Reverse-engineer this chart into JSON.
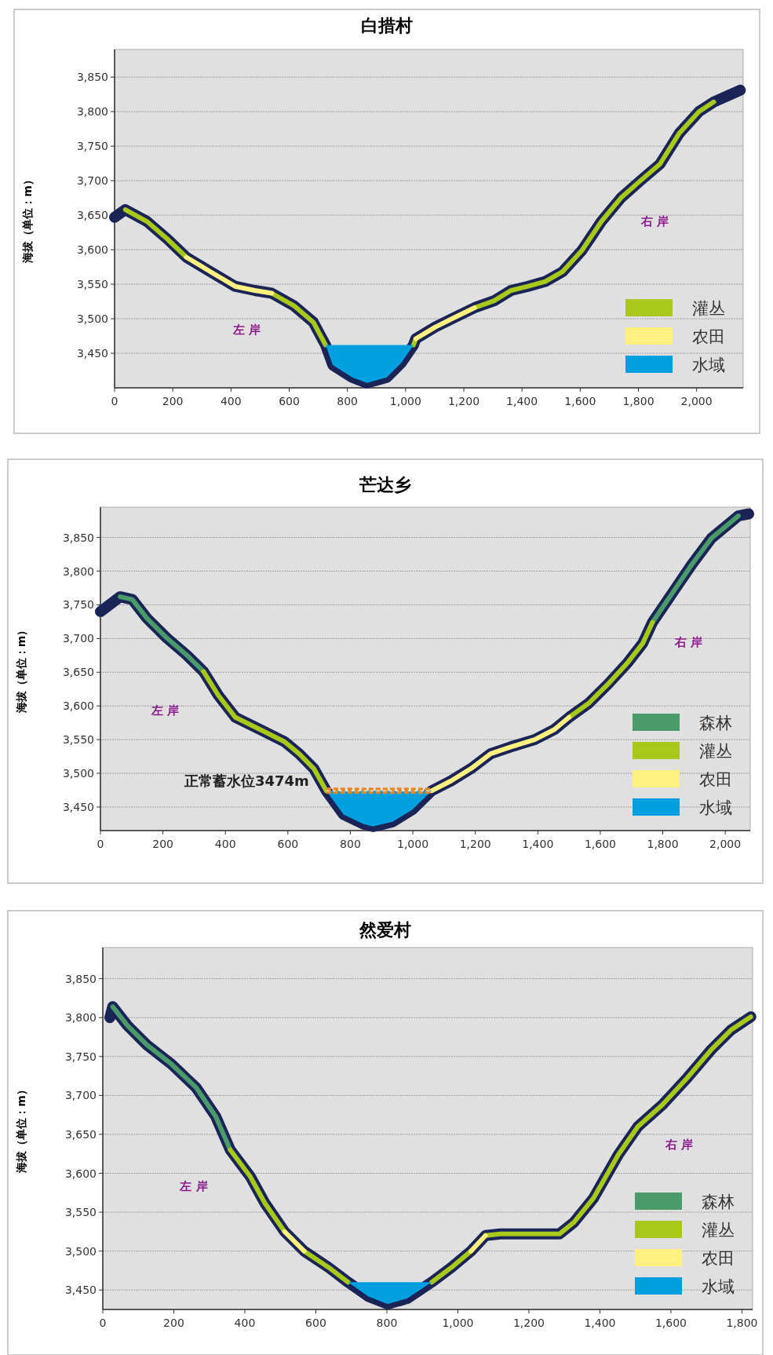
{
  "chart_data": [
    {
      "type": "line",
      "title": "白措村",
      "ylabel": "海拔（单位：m）",
      "xlim": [
        0,
        2160
      ],
      "ylim": [
        3400,
        3890
      ],
      "xticks": [
        0,
        200,
        400,
        600,
        800,
        {
          "value": 1000,
          "label": "1,000"
        },
        {
          "value": 1200,
          "label": "1,200"
        },
        {
          "value": 1400,
          "label": "1,400"
        },
        {
          "value": 1600,
          "label": "1,600"
        },
        {
          "value": 1800,
          "label": "1,800"
        },
        {
          "value": 2000,
          "label": "2,000"
        }
      ],
      "yticks": [
        {
          "value": 3450,
          "label": "3,450"
        },
        {
          "value": 3500,
          "label": "3,500"
        },
        {
          "value": 3550,
          "label": "3,550"
        },
        {
          "value": 3600,
          "label": "3,600"
        },
        {
          "value": 3650,
          "label": "3,650"
        },
        {
          "value": 3700,
          "label": "3,700"
        },
        {
          "value": 3750,
          "label": "3,750"
        },
        {
          "value": 3800,
          "label": "3,800"
        },
        {
          "value": 3850,
          "label": "3,850"
        }
      ],
      "grid": "y",
      "legend": "bottom right",
      "annotations": [
        "左 岸",
        "右 岸"
      ],
      "series": [
        {
          "color": "#1a2456",
          "x": [
            0,
            37,
            111,
            180,
            247,
            330,
            414,
            482,
            540,
            616,
            683,
            725,
            750,
            817,
            867,
            935,
            985,
            1027,
            1035,
            1102,
            1169,
            1237,
            1304,
            1362,
            1421,
            1480,
            1539,
            1606,
            1673,
            1740,
            1807,
            1874,
            1941,
            2008,
            2059,
            2150
          ],
          "values": [
            3647,
            3658,
            3641,
            3616,
            3589,
            3568,
            3547,
            3541,
            3537,
            3519,
            3495,
            3462,
            3433,
            3415,
            3407,
            3415,
            3436,
            3462,
            3471,
            3488,
            3502,
            3516,
            3526,
            3541,
            3547,
            3554,
            3568,
            3599,
            3641,
            3675,
            3700,
            3724,
            3769,
            3800,
            3814,
            3831
          ]
        },
        {
          "name": "灌丛",
          "color": "#a8c81a",
          "x": [
            37,
            111,
            180,
            247,
            null,
            540,
            616,
            683,
            725,
            null,
            1027,
            1035,
            null,
            1237,
            1304,
            1362,
            1421,
            1480,
            1539,
            1606,
            1673,
            1740,
            1807,
            1874,
            1941,
            2008,
            2059
          ],
          "values": [
            3658,
            3641,
            3616,
            3589,
            null,
            3537,
            3519,
            3495,
            3462,
            null,
            3462,
            3471,
            null,
            3516,
            3526,
            3541,
            3547,
            3554,
            3568,
            3599,
            3641,
            3675,
            3700,
            3724,
            3769,
            3800,
            3814
          ]
        },
        {
          "name": "农田",
          "color": "#fff080",
          "x": [
            247,
            330,
            414,
            482,
            540,
            null,
            1035,
            1102,
            1169,
            1237
          ],
          "values": [
            3589,
            3568,
            3547,
            3541,
            3537,
            null,
            3471,
            3488,
            3502,
            3516
          ]
        },
        {
          "name": "水域",
          "type": "area",
          "color": "#00a0e0",
          "x": [
            725,
            750,
            817,
            867,
            935,
            985,
            1027
          ],
          "values": [
            3462,
            3462,
            3462,
            3462,
            3462,
            3462,
            3462
          ]
        }
      ]
    },
    {
      "type": "line",
      "title": "芒达乡",
      "ylabel": "海拔（单位：m）",
      "xlim": [
        0,
        2080
      ],
      "ylim": [
        3415,
        3895
      ],
      "xticks": [
        0,
        200,
        400,
        600,
        800,
        {
          "value": 1000,
          "label": "1,000"
        },
        {
          "value": 1200,
          "label": "1,200"
        },
        {
          "value": 1400,
          "label": "1,400"
        },
        {
          "value": 1600,
          "label": "1,600"
        },
        {
          "value": 1800,
          "label": "1,800"
        },
        {
          "value": 2000,
          "label": "2,000"
        }
      ],
      "yticks": [
        {
          "value": 3450,
          "label": "3,450"
        },
        {
          "value": 3500,
          "label": "3,500"
        },
        {
          "value": 3550,
          "label": "3,550"
        },
        {
          "value": 3600,
          "label": "3,600"
        },
        {
          "value": 3650,
          "label": "3,650"
        },
        {
          "value": 3700,
          "label": "3,700"
        },
        {
          "value": 3750,
          "label": "3,750"
        },
        {
          "value": 3800,
          "label": "3,800"
        },
        {
          "value": 3850,
          "label": "3,850"
        }
      ],
      "grid": "y",
      "legend": "bottom right",
      "annotations": [
        "左 岸",
        "右 岸"
      ],
      "ref_lines": [
        {
          "axis": "y",
          "value": 3474,
          "label": "正常蓄水位3474m",
          "color": "#e8892b",
          "line_style": "dashed"
        }
      ],
      "series": [
        {
          "color": "#1a2456",
          "x": [
            0,
            63,
            102,
            149,
            212,
            275,
            330,
            377,
            432,
            511,
            589,
            636,
            683,
            723,
            778,
            841,
            872,
            935,
            998,
            1060,
            1123,
            1186,
            1249,
            1312,
            1390,
            1453,
            1500,
            1563,
            1626,
            1689,
            1736,
            1767,
            1830,
            1893,
            1956,
            2042,
            2075
          ],
          "values": [
            3740,
            3762,
            3758,
            3730,
            3701,
            3676,
            3651,
            3616,
            3583,
            3565,
            3547,
            3529,
            3507,
            3474,
            3439,
            3425,
            3421,
            3428,
            3446,
            3474,
            3489,
            3507,
            3529,
            3539,
            3550,
            3565,
            3583,
            3604,
            3633,
            3665,
            3693,
            3724,
            3767,
            3810,
            3849,
            3882,
            3885
          ]
        },
        {
          "name": "森林",
          "color": "#4a9a6a",
          "x": [
            63,
            102,
            149,
            212,
            275,
            330,
            null,
            1767,
            1830,
            1893,
            1956,
            2042
          ],
          "values": [
            3762,
            3758,
            3730,
            3701,
            3676,
            3651,
            null,
            3724,
            3767,
            3810,
            3849,
            3882
          ]
        },
        {
          "name": "灌丛",
          "color": "#a8c81a",
          "x": [
            330,
            377,
            432,
            511,
            589,
            636,
            683,
            723,
            null,
            1500,
            1563,
            1626,
            1689,
            1736,
            1767
          ],
          "values": [
            3651,
            3616,
            3583,
            3565,
            3547,
            3529,
            3507,
            3474,
            null,
            3583,
            3604,
            3633,
            3665,
            3693,
            3724
          ]
        },
        {
          "name": "农田",
          "color": "#fff080",
          "x": [
            1060,
            1123,
            1186,
            1249,
            1312,
            1390,
            1453,
            1500
          ],
          "values": [
            3474,
            3489,
            3507,
            3529,
            3539,
            3550,
            3565,
            3583
          ]
        },
        {
          "name": "水域",
          "type": "area",
          "color": "#00a0e0",
          "x": [
            723,
            778,
            841,
            872,
            935,
            998,
            1060
          ],
          "values": [
            3474,
            3474,
            3474,
            3474,
            3474,
            3474,
            3474
          ]
        }
      ]
    },
    {
      "type": "line",
      "title": "然爱村",
      "ylabel": "海拔（单位：m）",
      "xlim": [
        0,
        1830
      ],
      "ylim": [
        3425,
        3890
      ],
      "xticks": [
        0,
        200,
        400,
        600,
        800,
        {
          "value": 1000,
          "label": "1,000"
        },
        {
          "value": 1200,
          "label": "1,200"
        },
        {
          "value": 1400,
          "label": "1,400"
        },
        {
          "value": 1600,
          "label": "1,600"
        },
        {
          "value": 1800,
          "label": "1,800"
        }
      ],
      "yticks": [
        {
          "value": 3450,
          "label": "3,450"
        },
        {
          "value": 3500,
          "label": "3,500"
        },
        {
          "value": 3550,
          "label": "3,550"
        },
        {
          "value": 3600,
          "label": "3,600"
        },
        {
          "value": 3650,
          "label": "3,650"
        },
        {
          "value": 3700,
          "label": "3,700"
        },
        {
          "value": 3750,
          "label": "3,750"
        },
        {
          "value": 3800,
          "label": "3,800"
        },
        {
          "value": 3850,
          "label": "3,850"
        }
      ],
      "grid": "y",
      "legend": "bottom right",
      "annotations": [
        "左 岸",
        "右 岸"
      ],
      "series": [
        {
          "color": "#1a2456",
          "x": [
            20,
            28,
            69,
            124,
            194,
            263,
            318,
            359,
            415,
            456,
            512,
            567,
            636,
            691,
            747,
            802,
            857,
            926,
            982,
            1037,
            1078,
            1120,
            1203,
            1286,
            1327,
            1382,
            1452,
            1507,
            1576,
            1645,
            1714,
            1769,
            1825
          ],
          "values": [
            3800,
            3814,
            3790,
            3765,
            3740,
            3710,
            3673,
            3630,
            3596,
            3562,
            3525,
            3500,
            3479,
            3460,
            3442,
            3432,
            3439,
            3460,
            3479,
            3500,
            3520,
            3522,
            3522,
            3522,
            3537,
            3568,
            3624,
            3660,
            3688,
            3722,
            3759,
            3784,
            3801
          ]
        },
        {
          "name": "森林",
          "color": "#4a9a6a",
          "x": [
            28,
            69,
            124,
            194,
            263,
            318,
            359
          ],
          "values": [
            3814,
            3790,
            3765,
            3740,
            3710,
            3673,
            3630
          ]
        },
        {
          "name": "灌丛",
          "color": "#a8c81a",
          "x": [
            359,
            415,
            456,
            512,
            null,
            567,
            636,
            691,
            null,
            926,
            982,
            1037,
            null,
            1078,
            1120,
            1203,
            1286,
            1327,
            1382,
            1452,
            1507,
            1576,
            1645,
            1714,
            1769,
            1825
          ],
          "values": [
            3630,
            3596,
            3562,
            3525,
            null,
            3500,
            3479,
            3460,
            null,
            3460,
            3479,
            3500,
            null,
            3520,
            3522,
            3522,
            3522,
            3537,
            3568,
            3624,
            3660,
            3688,
            3722,
            3759,
            3784,
            3801
          ]
        },
        {
          "name": "农田",
          "color": "#fff080",
          "x": [
            512,
            567,
            null,
            1037,
            1078
          ],
          "values": [
            3525,
            3500,
            null,
            3500,
            3520
          ]
        },
        {
          "name": "水域",
          "type": "area",
          "color": "#00a0e0",
          "x": [
            691,
            747,
            802,
            857,
            926
          ],
          "values": [
            3460,
            3460,
            3460,
            3460,
            3460
          ]
        }
      ]
    }
  ]
}
